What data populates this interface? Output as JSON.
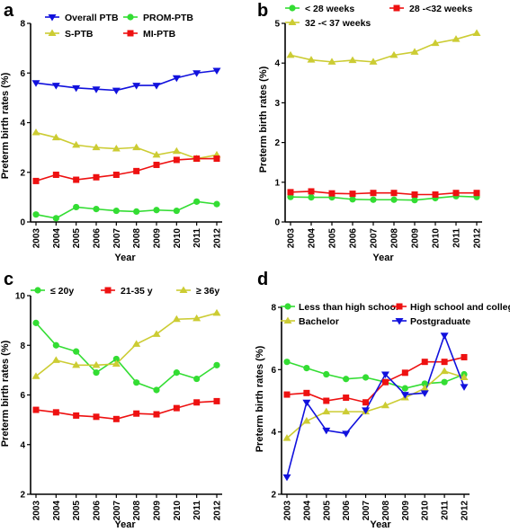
{
  "chart_data": [
    {
      "panel": "a",
      "type": "line",
      "categories": [
        "2003",
        "2004",
        "2005",
        "2006",
        "2007",
        "2008",
        "2009",
        "2010",
        "2011",
        "2012"
      ],
      "xlabel": "Year",
      "ylabel": "Preterm birth rates (%)",
      "ylim": [
        0,
        8
      ],
      "yticks": [
        0,
        2,
        4,
        6,
        8
      ],
      "legend": "top",
      "series": [
        {
          "name": "Overall PTB",
          "color": "#1111dd",
          "marker": "triangle-down",
          "values": [
            5.6,
            5.5,
            5.4,
            5.35,
            5.3,
            5.5,
            5.5,
            5.8,
            6.0,
            6.1
          ]
        },
        {
          "name": "PROM-PTB",
          "color": "#33dd33",
          "marker": "circle",
          "values": [
            0.3,
            0.15,
            0.6,
            0.52,
            0.45,
            0.42,
            0.48,
            0.45,
            0.82,
            0.72
          ]
        },
        {
          "name": "S-PTB",
          "color": "#cccc33",
          "marker": "triangle-up",
          "values": [
            3.6,
            3.4,
            3.1,
            3.0,
            2.95,
            3.0,
            2.7,
            2.85,
            2.55,
            2.7
          ]
        },
        {
          "name": "MI-PTB",
          "color": "#ee1111",
          "marker": "square",
          "values": [
            1.65,
            1.9,
            1.7,
            1.8,
            1.9,
            2.05,
            2.3,
            2.5,
            2.55,
            2.55
          ]
        }
      ]
    },
    {
      "panel": "b",
      "type": "line",
      "categories": [
        "2003",
        "2004",
        "2005",
        "2006",
        "2007",
        "2008",
        "2009",
        "2010",
        "2011",
        "2012"
      ],
      "xlabel": "Year",
      "ylabel": "Preterm birth rates (%)",
      "ylim": [
        0,
        5
      ],
      "yticks": [
        0,
        1,
        2,
        3,
        4,
        5
      ],
      "legend": "top",
      "series": [
        {
          "name": "< 28 weeks",
          "color": "#33dd33",
          "marker": "circle",
          "values": [
            0.63,
            0.62,
            0.62,
            0.57,
            0.56,
            0.56,
            0.55,
            0.6,
            0.65,
            0.63
          ]
        },
        {
          "name": "28 -<32 weeks",
          "color": "#ee1111",
          "marker": "square",
          "values": [
            0.75,
            0.77,
            0.72,
            0.71,
            0.73,
            0.73,
            0.69,
            0.69,
            0.73,
            0.73
          ]
        },
        {
          "name": "32 -< 37 weeks",
          "color": "#cccc33",
          "marker": "triangle-up",
          "values": [
            4.2,
            4.08,
            4.03,
            4.07,
            4.03,
            4.2,
            4.28,
            4.5,
            4.6,
            4.75
          ]
        }
      ]
    },
    {
      "panel": "c",
      "type": "line",
      "categories": [
        "2003",
        "2004",
        "2005",
        "2006",
        "2007",
        "2008",
        "2009",
        "2010",
        "2011",
        "2012"
      ],
      "xlabel": "Year",
      "ylabel": "Preterm birth rates (%)",
      "ylim": [
        2,
        10
      ],
      "yticks": [
        2,
        4,
        6,
        8,
        10
      ],
      "legend": "top",
      "series": [
        {
          "name": "≤ 20y",
          "color": "#33dd33",
          "marker": "circle",
          "values": [
            8.9,
            8.0,
            7.75,
            6.9,
            7.45,
            6.5,
            6.2,
            6.9,
            6.65,
            7.2
          ]
        },
        {
          "name": "21-35 y",
          "color": "#ee1111",
          "marker": "square",
          "values": [
            5.4,
            5.3,
            5.17,
            5.12,
            5.03,
            5.25,
            5.22,
            5.47,
            5.7,
            5.75
          ]
        },
        {
          "name": "≥ 36y",
          "color": "#cccc33",
          "marker": "triangle-up",
          "values": [
            6.75,
            7.4,
            7.2,
            7.2,
            7.25,
            8.05,
            8.45,
            9.05,
            9.08,
            9.3
          ]
        }
      ]
    },
    {
      "panel": "d",
      "type": "line",
      "categories": [
        "2003",
        "2004",
        "2005",
        "2006",
        "2007",
        "2008",
        "2009",
        "2010",
        "2011",
        "2012"
      ],
      "xlabel": "Year",
      "ylabel": "Preterm birth rates (%)",
      "ylim": [
        2,
        8
      ],
      "yticks": [
        2,
        4,
        6,
        8
      ],
      "legend": "top",
      "series": [
        {
          "name": "Less than high school",
          "color": "#33dd33",
          "marker": "circle",
          "values": [
            6.25,
            6.05,
            5.85,
            5.7,
            5.75,
            5.6,
            5.4,
            5.55,
            5.6,
            5.85
          ]
        },
        {
          "name": "High school and college",
          "color": "#ee1111",
          "marker": "square",
          "values": [
            5.2,
            5.25,
            5.0,
            5.1,
            4.95,
            5.6,
            5.9,
            6.25,
            6.25,
            6.4
          ]
        },
        {
          "name": "Bachelor",
          "color": "#cccc33",
          "marker": "triangle-up",
          "values": [
            3.8,
            4.35,
            4.65,
            4.65,
            4.65,
            4.85,
            5.1,
            5.4,
            5.95,
            5.75
          ]
        },
        {
          "name": "Postgraduate",
          "color": "#1111dd",
          "marker": "triangle-down",
          "values": [
            2.55,
            4.95,
            4.05,
            3.95,
            4.7,
            5.85,
            5.2,
            5.25,
            7.1,
            5.45
          ]
        }
      ]
    }
  ]
}
